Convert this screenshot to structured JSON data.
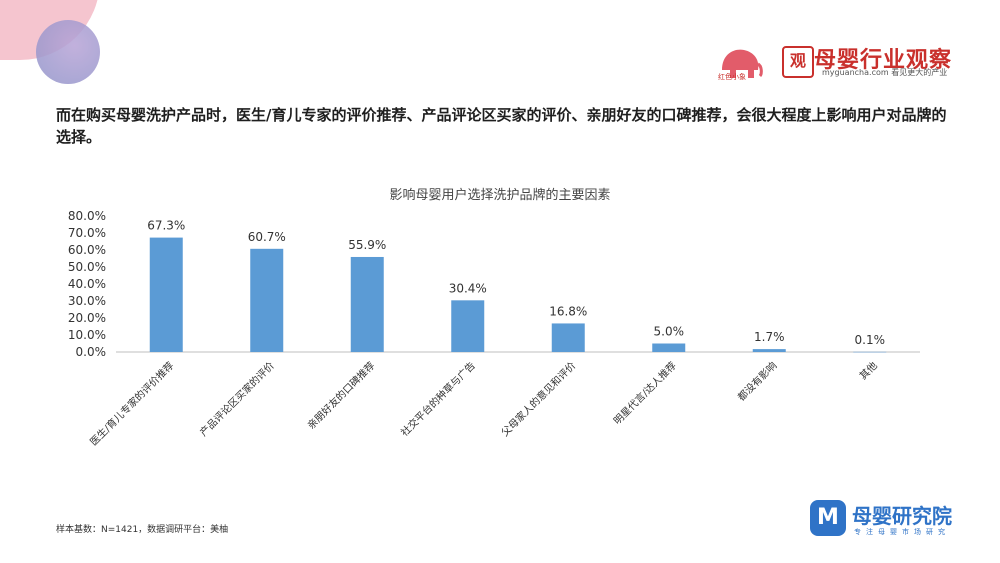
{
  "headline": "而在购买母婴洗护产品时，医生/育儿专家的评价推荐、产品评论区买家的评价、亲朋好友的口碑推荐，会很大程度上影响用户对品牌的选择。",
  "brand_left_text": "红色小象",
  "logo": {
    "box": "观",
    "title": "母婴行业观察",
    "sub": "myguancha.com 看见更大的产业"
  },
  "footnote": "样本基数：N=1421，数据调研平台：美柚",
  "brand_bottom": {
    "title": "母婴研究院",
    "sub": "专注母婴市场研究",
    "icon": "M"
  },
  "colors": {
    "bar": "#5b9bd5",
    "accent": "#c9302c",
    "brand_blue": "#2f73c7"
  },
  "chart_data": {
    "type": "bar",
    "title": "影响母婴用户选择洗护品牌的主要因素",
    "categories": [
      "医生/育儿专家的评价推荐",
      "产品评论区买家的评价",
      "亲朋好友的口碑推荐",
      "社交平台的种草与广告",
      "父母家人的意见和评价",
      "明星代言/达人推荐",
      "都没有影响",
      "其他"
    ],
    "values": [
      67.3,
      60.7,
      55.9,
      30.4,
      16.8,
      5.0,
      1.7,
      0.1
    ],
    "value_labels": [
      "67.3%",
      "60.7%",
      "55.9%",
      "30.4%",
      "16.8%",
      "5.0%",
      "1.7%",
      "0.1%"
    ],
    "y_ticks": [
      "0.0%",
      "10.0%",
      "20.0%",
      "30.0%",
      "40.0%",
      "50.0%",
      "60.0%",
      "70.0%",
      "80.0%"
    ],
    "ylim": [
      0,
      80
    ],
    "grid": false,
    "xlabel": "",
    "ylabel": ""
  }
}
